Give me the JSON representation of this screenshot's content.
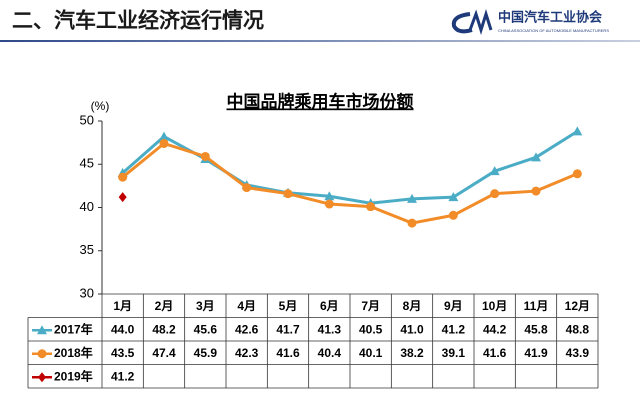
{
  "header": {
    "title": "二、汽车工业经济运行情况",
    "logo_text": "中国汽车工业协会",
    "logo_subtext": "CHINA ASSOCIATION OF AUTOMOBILE MANUFACTURERS"
  },
  "chart_data": {
    "type": "line",
    "title": "中国品牌乘用车市场份额",
    "y_label": "(%)",
    "categories": [
      "1月",
      "2月",
      "3月",
      "4月",
      "5月",
      "6月",
      "7月",
      "8月",
      "9月",
      "10月",
      "11月",
      "12月"
    ],
    "series": [
      {
        "name": "2017年",
        "color": "#4bacc6",
        "marker": "triangle",
        "values": [
          44.0,
          48.2,
          45.6,
          42.6,
          41.7,
          41.3,
          40.5,
          41.0,
          41.2,
          44.2,
          45.8,
          48.8
        ],
        "value_labels": [
          "44.0",
          "48.2",
          "45.6",
          "42.6",
          "41.7",
          "41.3",
          "40.5",
          "41.0",
          "41.2",
          "44.2",
          "45.8",
          "48.8"
        ]
      },
      {
        "name": "2018年",
        "color": "#f28c28",
        "marker": "circle",
        "values": [
          43.5,
          47.4,
          45.9,
          42.3,
          41.6,
          40.4,
          40.1,
          38.2,
          39.1,
          41.6,
          41.9,
          43.9
        ],
        "value_labels": [
          "43.5",
          "47.4",
          "45.9",
          "42.3",
          "41.6",
          "40.4",
          "40.1",
          "38.2",
          "39.1",
          "41.6",
          "41.9",
          "43.9"
        ]
      },
      {
        "name": "2019年",
        "color": "#c00000",
        "marker": "diamond",
        "values": [
          41.2,
          null,
          null,
          null,
          null,
          null,
          null,
          null,
          null,
          null,
          null,
          null
        ],
        "value_labels": [
          "41.2",
          null,
          null,
          null,
          null,
          null,
          null,
          null,
          null,
          null,
          null,
          null
        ]
      }
    ],
    "ylim": [
      30,
      50
    ],
    "yticks": [
      30,
      35,
      40,
      45,
      50
    ]
  }
}
